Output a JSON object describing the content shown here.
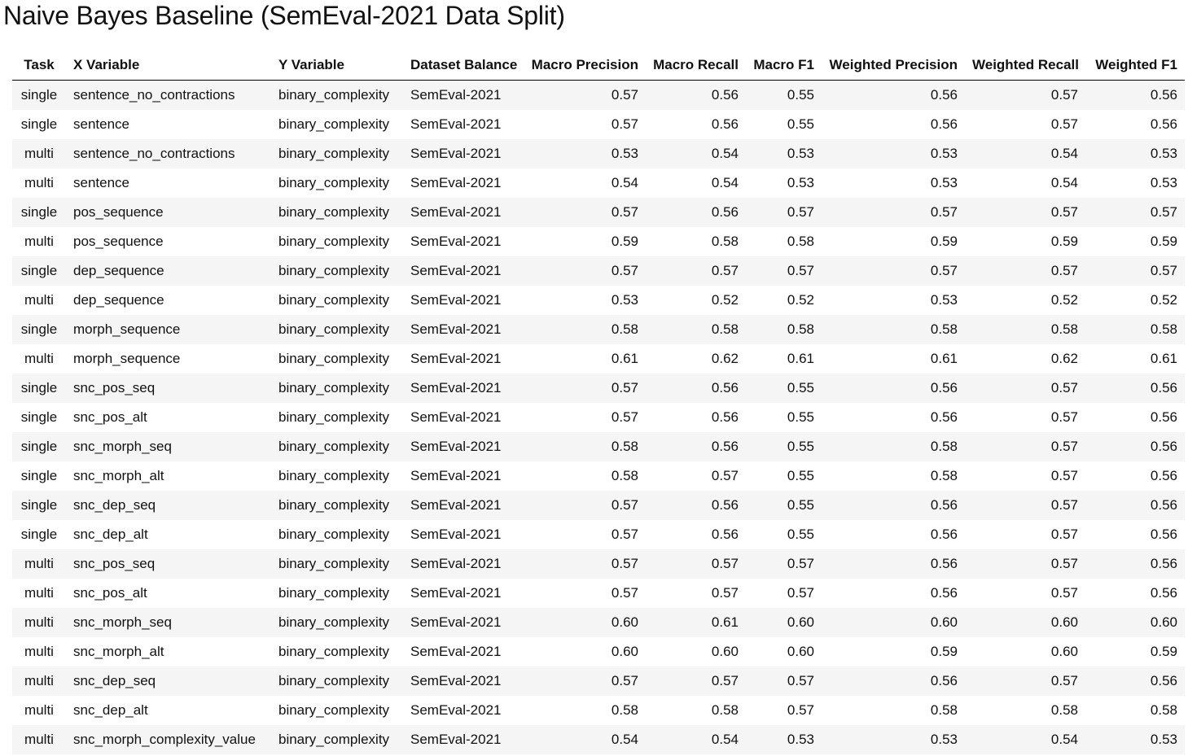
{
  "title": "Naive Bayes Baseline (SemEval-2021 Data Split)",
  "table": {
    "headers": [
      "Task",
      "X Variable",
      "Y Variable",
      "Dataset Balance",
      "Macro Precision",
      "Macro Recall",
      "Macro F1",
      "Weighted Precision",
      "Weighted Recall",
      "Weighted F1"
    ],
    "rows": [
      [
        "single",
        "sentence_no_contractions",
        "binary_complexity",
        "SemEval-2021",
        "0.57",
        "0.56",
        "0.55",
        "0.56",
        "0.57",
        "0.56"
      ],
      [
        "single",
        "sentence",
        "binary_complexity",
        "SemEval-2021",
        "0.57",
        "0.56",
        "0.55",
        "0.56",
        "0.57",
        "0.56"
      ],
      [
        "multi",
        "sentence_no_contractions",
        "binary_complexity",
        "SemEval-2021",
        "0.53",
        "0.54",
        "0.53",
        "0.53",
        "0.54",
        "0.53"
      ],
      [
        "multi",
        "sentence",
        "binary_complexity",
        "SemEval-2021",
        "0.54",
        "0.54",
        "0.53",
        "0.53",
        "0.54",
        "0.53"
      ],
      [
        "single",
        "pos_sequence",
        "binary_complexity",
        "SemEval-2021",
        "0.57",
        "0.56",
        "0.57",
        "0.57",
        "0.57",
        "0.57"
      ],
      [
        "multi",
        "pos_sequence",
        "binary_complexity",
        "SemEval-2021",
        "0.59",
        "0.58",
        "0.58",
        "0.59",
        "0.59",
        "0.59"
      ],
      [
        "single",
        "dep_sequence",
        "binary_complexity",
        "SemEval-2021",
        "0.57",
        "0.57",
        "0.57",
        "0.57",
        "0.57",
        "0.57"
      ],
      [
        "multi",
        "dep_sequence",
        "binary_complexity",
        "SemEval-2021",
        "0.53",
        "0.52",
        "0.52",
        "0.53",
        "0.52",
        "0.52"
      ],
      [
        "single",
        "morph_sequence",
        "binary_complexity",
        "SemEval-2021",
        "0.58",
        "0.58",
        "0.58",
        "0.58",
        "0.58",
        "0.58"
      ],
      [
        "multi",
        "morph_sequence",
        "binary_complexity",
        "SemEval-2021",
        "0.61",
        "0.62",
        "0.61",
        "0.61",
        "0.62",
        "0.61"
      ],
      [
        "single",
        "snc_pos_seq",
        "binary_complexity",
        "SemEval-2021",
        "0.57",
        "0.56",
        "0.55",
        "0.56",
        "0.57",
        "0.56"
      ],
      [
        "single",
        "snc_pos_alt",
        "binary_complexity",
        "SemEval-2021",
        "0.57",
        "0.56",
        "0.55",
        "0.56",
        "0.57",
        "0.56"
      ],
      [
        "single",
        "snc_morph_seq",
        "binary_complexity",
        "SemEval-2021",
        "0.58",
        "0.56",
        "0.55",
        "0.58",
        "0.57",
        "0.56"
      ],
      [
        "single",
        "snc_morph_alt",
        "binary_complexity",
        "SemEval-2021",
        "0.58",
        "0.57",
        "0.55",
        "0.58",
        "0.57",
        "0.56"
      ],
      [
        "single",
        "snc_dep_seq",
        "binary_complexity",
        "SemEval-2021",
        "0.57",
        "0.56",
        "0.55",
        "0.56",
        "0.57",
        "0.56"
      ],
      [
        "single",
        "snc_dep_alt",
        "binary_complexity",
        "SemEval-2021",
        "0.57",
        "0.56",
        "0.55",
        "0.56",
        "0.57",
        "0.56"
      ],
      [
        "multi",
        "snc_pos_seq",
        "binary_complexity",
        "SemEval-2021",
        "0.57",
        "0.57",
        "0.57",
        "0.56",
        "0.57",
        "0.56"
      ],
      [
        "multi",
        "snc_pos_alt",
        "binary_complexity",
        "SemEval-2021",
        "0.57",
        "0.57",
        "0.57",
        "0.56",
        "0.57",
        "0.56"
      ],
      [
        "multi",
        "snc_morph_seq",
        "binary_complexity",
        "SemEval-2021",
        "0.60",
        "0.61",
        "0.60",
        "0.60",
        "0.60",
        "0.60"
      ],
      [
        "multi",
        "snc_morph_alt",
        "binary_complexity",
        "SemEval-2021",
        "0.60",
        "0.60",
        "0.60",
        "0.59",
        "0.60",
        "0.59"
      ],
      [
        "multi",
        "snc_dep_seq",
        "binary_complexity",
        "SemEval-2021",
        "0.57",
        "0.57",
        "0.57",
        "0.56",
        "0.57",
        "0.56"
      ],
      [
        "multi",
        "snc_dep_alt",
        "binary_complexity",
        "SemEval-2021",
        "0.58",
        "0.58",
        "0.57",
        "0.58",
        "0.58",
        "0.58"
      ],
      [
        "multi",
        "snc_morph_complexity_value",
        "binary_complexity",
        "SemEval-2021",
        "0.54",
        "0.54",
        "0.53",
        "0.53",
        "0.54",
        "0.53"
      ]
    ]
  }
}
